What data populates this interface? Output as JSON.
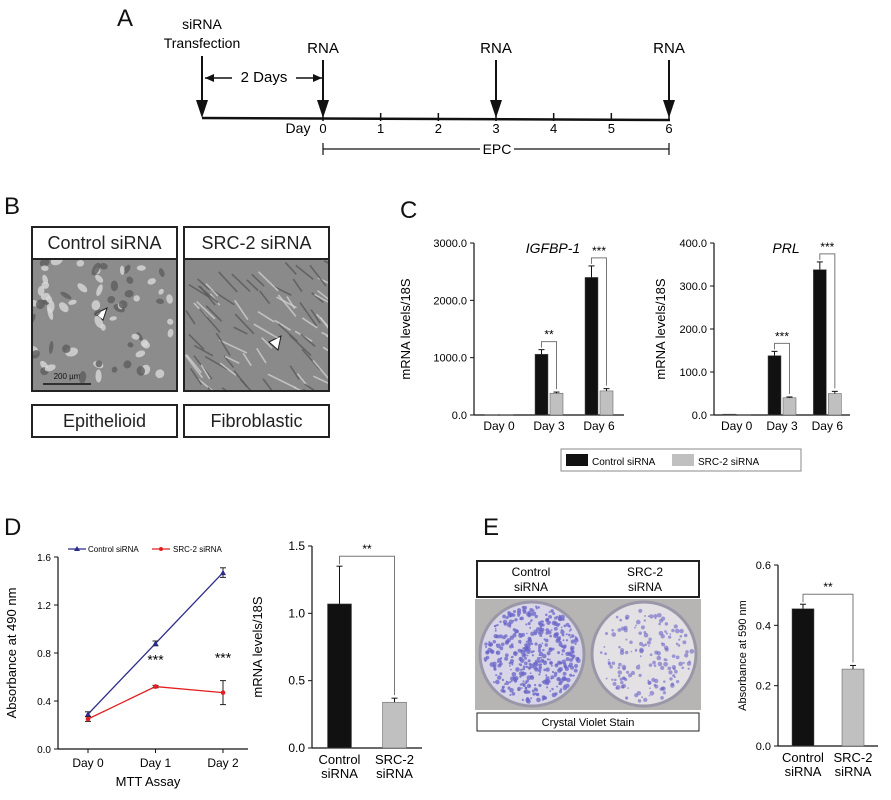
{
  "panels": {
    "a": "A",
    "b": "B",
    "c": "C",
    "d": "D",
    "e": "E"
  },
  "timeline": {
    "transfection": "siRNA",
    "transfection2": "Transfection",
    "two_days": "2 Days",
    "rna_labels": [
      "RNA",
      "RNA",
      "RNA"
    ],
    "day_prefix": "Day",
    "days": [
      "0",
      "1",
      "2",
      "3",
      "4",
      "5",
      "6"
    ],
    "epc": "EPC"
  },
  "micrographs": {
    "control_title": "Control siRNA",
    "src2_title": "SRC-2 siRNA",
    "control_caption": "Epithelioid",
    "src2_caption": "Fibroblastic",
    "scale_bar": "200 µm"
  },
  "legend_c": {
    "control": "Control siRNA",
    "src2": "SRC-2 siRNA"
  },
  "colors": {
    "control": "#111111",
    "src2": "#c0c0c0",
    "line_control": "#2b2b8a",
    "line_src2": "#e02020",
    "stain": "#6a64c8"
  },
  "chart_data": [
    {
      "id": "C-left",
      "type": "bar",
      "title": "IGFBP-1",
      "ylabel": "mRNA levels/18S",
      "categories": [
        "Day 0",
        "Day 3",
        "Day 6"
      ],
      "yticks": [
        "0.0",
        "1000.0",
        "2000.0",
        "3000.0"
      ],
      "ylim": [
        0,
        3000
      ],
      "series": [
        {
          "name": "Control siRNA",
          "values": [
            5,
            1060,
            2400
          ],
          "errors": [
            0,
            80,
            200
          ]
        },
        {
          "name": "SRC-2 siRNA",
          "values": [
            5,
            380,
            420
          ],
          "errors": [
            0,
            20,
            40
          ]
        }
      ],
      "significance": [
        "**",
        "***"
      ]
    },
    {
      "id": "C-right",
      "type": "bar",
      "title": "PRL",
      "ylabel": "mRNA levels/18S",
      "categories": [
        "Day 0",
        "Day 3",
        "Day 6"
      ],
      "yticks": [
        "0.0",
        "100.0",
        "200.0",
        "300.0",
        "400.0"
      ],
      "ylim": [
        0,
        400
      ],
      "series": [
        {
          "name": "Control siRNA",
          "values": [
            2,
            138,
            338
          ],
          "errors": [
            0,
            10,
            18
          ]
        },
        {
          "name": "SRC-2 siRNA",
          "values": [
            1,
            40,
            50
          ],
          "errors": [
            0,
            2,
            5
          ]
        }
      ],
      "significance": [
        "***",
        "***"
      ]
    },
    {
      "id": "D-left",
      "type": "line",
      "ylabel": "Absorbance at 490 nm",
      "xlabel": "MTT Assay",
      "categories": [
        "Day 0",
        "Day 1",
        "Day 2"
      ],
      "yticks": [
        "0.0",
        "0.4",
        "0.8",
        "1.2",
        "1.6"
      ],
      "ylim": [
        0,
        1.6
      ],
      "series": [
        {
          "name": "Control siRNA",
          "values": [
            0.29,
            0.88,
            1.47
          ],
          "errors": [
            0.02,
            0.02,
            0.04
          ]
        },
        {
          "name": "SRC-2 siRNA",
          "values": [
            0.25,
            0.52,
            0.47
          ],
          "errors": [
            0.02,
            0.01,
            0.1
          ]
        }
      ],
      "significance": [
        "***",
        "***"
      ]
    },
    {
      "id": "D-right",
      "type": "bar",
      "ylabel": "mRNA levels/18S",
      "categories": [
        "Control siRNA",
        "SRC-2 siRNA"
      ],
      "cat_lines": [
        [
          "Control",
          "siRNA"
        ],
        [
          "SRC-2",
          "siRNA"
        ]
      ],
      "yticks": [
        "0.0",
        "0.5",
        "1.0",
        "1.5"
      ],
      "ylim": [
        0,
        1.5
      ],
      "values": [
        1.07,
        0.34
      ],
      "errors": [
        0.28,
        0.03
      ],
      "significance": "**"
    },
    {
      "id": "E-right",
      "type": "bar",
      "ylabel": "Absorbance at 590 nm",
      "categories": [
        "Control siRNA",
        "SRC-2 siRNA"
      ],
      "cat_lines": [
        [
          "Control",
          "siRNA"
        ],
        [
          "SRC-2",
          "siRNA"
        ]
      ],
      "yticks": [
        "0.0",
        "0.2",
        "0.4",
        "0.6"
      ],
      "ylim": [
        0,
        0.6
      ],
      "values": [
        0.455,
        0.255
      ],
      "errors": [
        0.015,
        0.012
      ],
      "significance": "**"
    }
  ],
  "stain_panel": {
    "control": [
      "Control",
      "siRNA"
    ],
    "src2": [
      "SRC-2",
      "siRNA"
    ],
    "caption": "Crystal Violet Stain"
  }
}
